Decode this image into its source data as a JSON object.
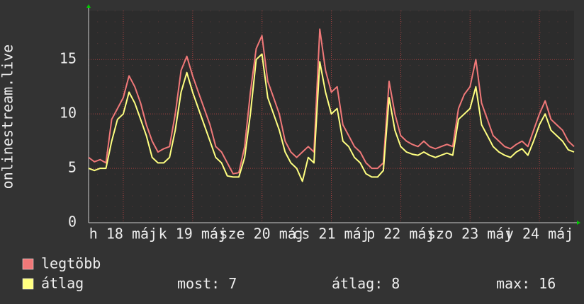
{
  "chart_data": {
    "type": "line",
    "y_label": "onlinestream.live",
    "x": [
      0,
      2,
      4,
      6,
      8,
      10,
      12,
      14,
      16,
      18,
      20,
      22,
      24,
      26,
      28,
      30,
      32,
      34,
      36,
      38,
      40,
      42,
      44,
      46,
      48,
      50,
      52,
      54,
      56,
      58,
      60,
      62,
      64,
      66,
      68,
      70,
      72,
      74,
      76,
      78,
      80,
      82,
      84,
      86,
      88,
      90,
      92,
      94,
      96,
      98,
      100,
      102,
      104,
      106,
      108,
      110,
      112,
      114,
      116,
      118,
      120,
      122,
      124,
      126,
      128,
      130,
      132,
      134,
      136,
      138,
      140,
      142,
      144,
      146,
      148,
      150,
      152,
      154,
      156,
      158,
      160,
      162,
      164,
      166,
      168
    ],
    "series": [
      {
        "name": "legtöbb",
        "color": "#f07878",
        "values": [
          6,
          5.6,
          5.8,
          5.5,
          9.5,
          10.5,
          11.5,
          13.5,
          12.5,
          11,
          9,
          7.5,
          6.5,
          6.8,
          7,
          10,
          14,
          15.3,
          13.5,
          12,
          10.5,
          9,
          7,
          6.5,
          5.5,
          4.5,
          4.6,
          7,
          12,
          16,
          17.2,
          13,
          11.5,
          10,
          7.5,
          6.5,
          6,
          6.5,
          7,
          6.5,
          17.8,
          14,
          12,
          12.5,
          9,
          8,
          7,
          6.5,
          5.5,
          5,
          5,
          5.5,
          13,
          10,
          8,
          7.5,
          7.2,
          7,
          7.5,
          7,
          6.8,
          7,
          7.2,
          7,
          10.5,
          11.8,
          12.5,
          15,
          11,
          9.5,
          8,
          7.5,
          7,
          6.8,
          7.2,
          7.5,
          7,
          8.5,
          10,
          11.2,
          9.5,
          9,
          8.5,
          7.5,
          7
        ]
      },
      {
        "name": "átlag",
        "color": "#ffff80",
        "values": [
          5,
          4.8,
          5,
          5,
          7.5,
          9.5,
          10,
          12,
          11,
          9.5,
          8,
          6,
          5.5,
          5.5,
          6,
          8.5,
          12,
          13.8,
          12,
          10.5,
          9,
          7.5,
          6,
          5.5,
          4.3,
          4.2,
          4.2,
          6,
          10,
          15,
          15.5,
          11.5,
          10,
          8.5,
          6.5,
          5.5,
          5,
          3.8,
          6,
          5.5,
          14.8,
          12,
          10,
          10.5,
          7.5,
          7,
          6,
          5.5,
          4.5,
          4.2,
          4.2,
          4.8,
          11.5,
          8.5,
          7,
          6.5,
          6.3,
          6.2,
          6.5,
          6.2,
          6,
          6.2,
          6.4,
          6.2,
          9.5,
          10,
          10.5,
          12.5,
          9,
          8,
          7,
          6.5,
          6.2,
          6,
          6.5,
          6.8,
          6.2,
          7.5,
          9,
          10,
          8.5,
          8,
          7.5,
          6.7,
          6.5
        ]
      }
    ],
    "xlim": [
      0,
      168
    ],
    "xticks": [
      {
        "value": 12,
        "label": "h 18 máj"
      },
      {
        "value": 36,
        "label": "k 19 máj"
      },
      {
        "value": 60,
        "label": "sze 20 máj"
      },
      {
        "value": 84,
        "label": "cs 21 máj"
      },
      {
        "value": 108,
        "label": "p 22 máj"
      },
      {
        "value": 132,
        "label": "szo 23 máj"
      },
      {
        "value": 156,
        "label": "v 24 máj"
      }
    ],
    "ylim": [
      0,
      19.5
    ],
    "yticks": [
      0,
      5,
      10,
      15
    ],
    "grid": true,
    "stats": [
      {
        "label": "most:",
        "value": 7
      },
      {
        "label": "átlag:",
        "value": 8
      },
      {
        "label": "max:",
        "value": 16
      }
    ]
  }
}
